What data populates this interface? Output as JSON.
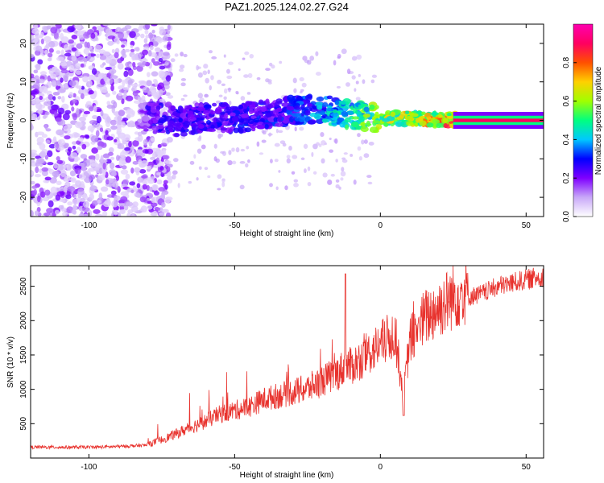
{
  "title": "PAZ1.2025.124.02.27.G24",
  "chart_data": [
    {
      "type": "heatmap",
      "xlabel": "Height of straight line (km)",
      "ylabel": "Frequency (Hz)",
      "xlim": [
        -120,
        56
      ],
      "ylim": [
        -25,
        25
      ],
      "xticks": [
        "-100",
        "-50",
        "0",
        "50"
      ],
      "yticks": [
        "20",
        "10",
        "0",
        "-10",
        "-20"
      ],
      "colorbar": {
        "label": "Normalized spectral amplitude",
        "range": [
          0,
          1
        ],
        "ticks": [
          "0.0",
          "0.2",
          "0.4",
          "0.6",
          "0.8"
        ],
        "colormap": [
          "#ffffff",
          "#c8a8f8",
          "#7f00ff",
          "#0000ff",
          "#00c8ff",
          "#00ff80",
          "#a0ff00",
          "#ffd000",
          "#ff5000",
          "#ff0060",
          "#ff00b0"
        ]
      },
      "ridge": [
        {
          "x": -80,
          "y": 1.5,
          "amp": 0.28
        },
        {
          "x": -70,
          "y": -0.5,
          "amp": 0.3
        },
        {
          "x": -60,
          "y": 1.0,
          "amp": 0.3
        },
        {
          "x": -50,
          "y": 0.5,
          "amp": 0.32
        },
        {
          "x": -40,
          "y": 1.5,
          "amp": 0.32
        },
        {
          "x": -30,
          "y": 2.5,
          "amp": 0.35
        },
        {
          "x": -20,
          "y": 3.0,
          "amp": 0.45
        },
        {
          "x": -10,
          "y": 1.5,
          "amp": 0.55
        },
        {
          "x": 0,
          "y": 0.5,
          "amp": 0.7
        },
        {
          "x": 10,
          "y": 0.5,
          "amp": 0.75
        },
        {
          "x": 20,
          "y": 0.2,
          "amp": 0.85
        },
        {
          "x": 30,
          "y": 0.0,
          "amp": 0.95
        },
        {
          "x": 56,
          "y": 0.0,
          "amp": 1.0
        }
      ],
      "grid": false
    },
    {
      "type": "line",
      "xlabel": "Height of straight line (km)",
      "ylabel": "SNR (10 * v/v)",
      "xlim": [
        -120,
        56
      ],
      "ylim": [
        0,
        2800
      ],
      "xticks": [
        "-100",
        "-50",
        "0",
        "50"
      ],
      "yticks": [
        "500",
        "1000",
        "1500",
        "2000",
        "2500"
      ],
      "series": [
        {
          "color": "#e8322d",
          "x": [
            -120,
            -110,
            -100,
            -90,
            -80,
            -75,
            -70,
            -65,
            -60,
            -55,
            -50,
            -45,
            -40,
            -35,
            -30,
            -25,
            -20,
            -15,
            -12,
            -10,
            -5,
            0,
            5,
            8,
            10,
            15,
            20,
            25,
            30,
            35,
            40,
            45,
            50,
            56
          ],
          "y": [
            150,
            150,
            150,
            160,
            180,
            250,
            330,
            420,
            500,
            600,
            650,
            700,
            800,
            850,
            900,
            950,
            1050,
            1150,
            1250,
            1250,
            1400,
            1550,
            1700,
            850,
            1600,
            1900,
            2050,
            2200,
            2300,
            2350,
            2450,
            2500,
            2550,
            2600
          ]
        }
      ],
      "grid": false
    }
  ]
}
